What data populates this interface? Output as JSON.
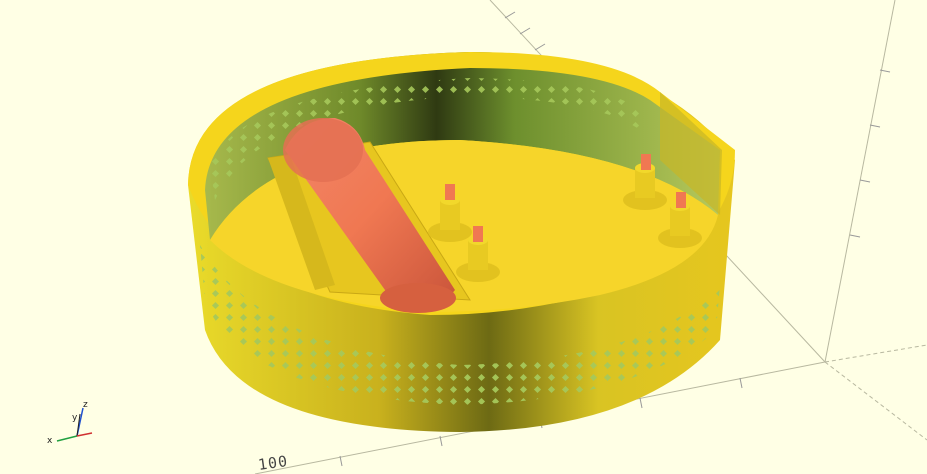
{
  "viewport": {
    "background": "#ffffe5",
    "model_color": "#f5d51c",
    "part_color": "#f07852",
    "hole_color": "#a6c85a"
  },
  "ruler": {
    "label": "100"
  },
  "axes_indicator": {
    "x_label": "x",
    "y_label": "y",
    "z_label": "z"
  }
}
